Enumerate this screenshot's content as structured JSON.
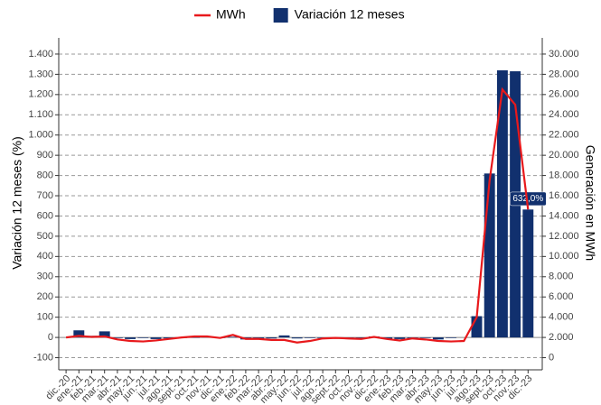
{
  "chart_data": {
    "type": "bar-line",
    "y_label": "Variación 12 meses (%)",
    "y2_label": "Generación en MWh",
    "categories": [
      "dic.-20",
      "ene.-21",
      "feb.-21",
      "mar.-21",
      "abr.-21",
      "may.-21",
      "jun.-21",
      "jul.-21",
      "ago.-21",
      "sept.-21",
      "oct.-21",
      "nov.-21",
      "dic.-21",
      "ene.-22",
      "feb.-22",
      "mar.-22",
      "abr.-22",
      "may.-22",
      "jun.-22",
      "jul.-22",
      "ago.-22",
      "sept.-22",
      "oct.-22",
      "nov.-22",
      "dic.-22",
      "ene.-23",
      "feb.-23",
      "mar.-23",
      "abr.-23",
      "may.-23",
      "jun.-23",
      "jul.-23",
      "ago.-23",
      "sept.-23",
      "oct.-23",
      "nov.-23",
      "dic.-23"
    ],
    "series": [
      {
        "name": "MWh",
        "type": "line",
        "axis": "y2",
        "color": "#e8191c",
        "values": [
          2000,
          2150,
          2050,
          2100,
          1800,
          1650,
          1600,
          1700,
          1850,
          2000,
          2100,
          2100,
          1950,
          2250,
          1850,
          1850,
          1750,
          1750,
          1500,
          1650,
          1900,
          1950,
          1900,
          1850,
          2050,
          1850,
          1700,
          1900,
          1800,
          1650,
          1600,
          1650,
          4000,
          17500,
          26500,
          25000,
          14640
        ]
      },
      {
        "name": "Variación 12 meses",
        "type": "bar",
        "color": "#11306e",
        "values": [
          0,
          35,
          8,
          30,
          -3,
          -8,
          -3,
          -8,
          -5,
          -3,
          -2,
          2,
          -3,
          3,
          -10,
          -10,
          -5,
          10,
          -5,
          -3,
          -3,
          -3,
          -5,
          -8,
          5,
          -8,
          -8,
          -5,
          -3,
          -10,
          -3,
          0,
          105,
          810,
          1320,
          1315,
          632
        ],
        "value_labels": [
          null,
          null,
          null,
          null,
          null,
          null,
          null,
          null,
          null,
          null,
          null,
          null,
          null,
          null,
          null,
          null,
          null,
          null,
          null,
          null,
          null,
          null,
          null,
          null,
          null,
          null,
          null,
          null,
          null,
          null,
          null,
          null,
          null,
          null,
          null,
          null,
          "632,0%"
        ]
      }
    ],
    "ylim": [
      -160,
      1480
    ],
    "yticks": [
      -100,
      0,
      100,
      200,
      300,
      400,
      500,
      600,
      700,
      800,
      900,
      {
        "value": 1000,
        "label": "1.000"
      },
      {
        "value": 1100,
        "label": "1.100"
      },
      {
        "value": 1200,
        "label": "1.200"
      },
      {
        "value": 1300,
        "label": "1.300"
      },
      {
        "value": 1400,
        "label": "1.400"
      }
    ],
    "y2lim": [
      -1200,
      31600
    ],
    "y2ticks": [
      0,
      {
        "value": 2000,
        "label": "2.000"
      },
      {
        "value": 4000,
        "label": "4.000"
      },
      {
        "value": 6000,
        "label": "6.000"
      },
      {
        "value": 8000,
        "label": "8.000"
      },
      {
        "value": 10000,
        "label": "10.000"
      },
      {
        "value": 12000,
        "label": "12.000"
      },
      {
        "value": 14000,
        "label": "14.000"
      },
      {
        "value": 16000,
        "label": "16.000"
      },
      {
        "value": 18000,
        "label": "18.000"
      },
      {
        "value": 20000,
        "label": "20.000"
      },
      {
        "value": 22000,
        "label": "22.000"
      },
      {
        "value": 24000,
        "label": "24.000"
      },
      {
        "value": 26000,
        "label": "26.000"
      },
      {
        "value": 28000,
        "label": "28.000"
      },
      {
        "value": 30000,
        "label": "30.000"
      }
    ],
    "grid": true,
    "legend": "top"
  }
}
